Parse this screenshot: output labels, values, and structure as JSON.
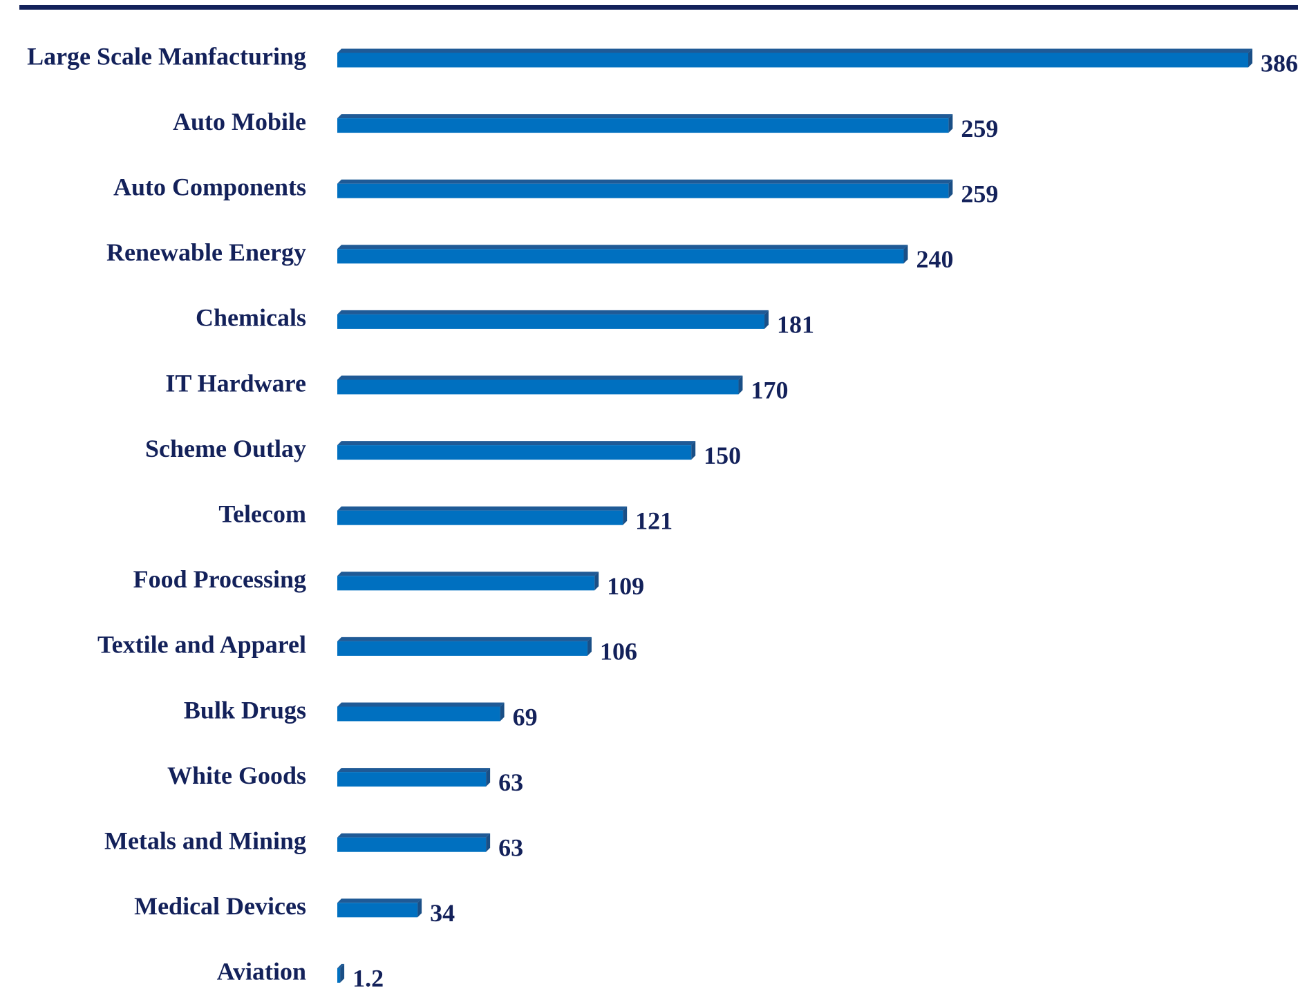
{
  "chart_data": {
    "type": "bar",
    "orientation": "horizontal",
    "title": "",
    "xlabel": "",
    "ylabel": "",
    "grid": false,
    "legend": "none",
    "xlim": [
      0,
      386
    ],
    "categories": [
      "Large Scale Manfacturing",
      "Auto Mobile",
      "Auto Components",
      "Renewable Energy",
      "Chemicals",
      "IT Hardware",
      "Scheme Outlay",
      "Telecom",
      "Food Processing",
      "Textile and Apparel",
      "Bulk Drugs",
      "White Goods",
      "Metals and Mining",
      "Medical Devices",
      "Aviation"
    ],
    "values": [
      386,
      259,
      259,
      240,
      181,
      170,
      150,
      121,
      109,
      106,
      69,
      63,
      63,
      34,
      1.2
    ],
    "value_labels": [
      "386",
      "259",
      "259",
      "240",
      "181",
      "170",
      "150",
      "121",
      "109",
      "106",
      "69",
      "63",
      "63",
      "34",
      "1.2"
    ]
  },
  "colors": {
    "bar_face": "#0070C0",
    "bar_top": "#1F5A96",
    "bar_end": "#1A4F86",
    "text": "#13215A",
    "top_rule": "#13215A"
  }
}
